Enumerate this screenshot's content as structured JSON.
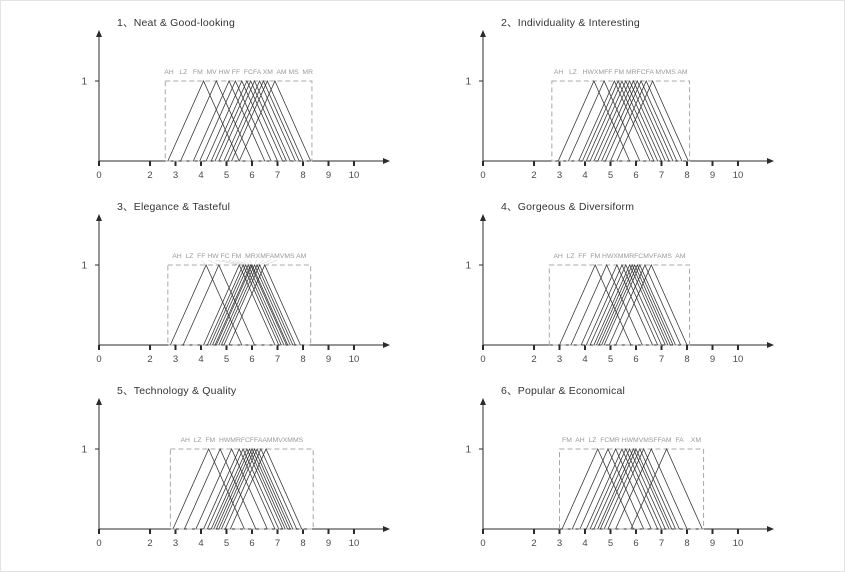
{
  "figure": {
    "name": "fuzzy membership function evaluation charts"
  },
  "colors": {
    "line": "#3a3a3a",
    "box": "#a8a8a8",
    "label": "#9a9a9a",
    "axis": "#2b2b2b",
    "tick_text": "#4a4a4a",
    "leader": "#cccccc"
  },
  "x_axis": {
    "ticks": [
      {
        "v": 0,
        "label": "0"
      },
      {
        "v": 2,
        "label": "2"
      },
      {
        "v": 3,
        "label": "3"
      },
      {
        "v": 4,
        "label": "4"
      },
      {
        "v": 5,
        "label": "5"
      },
      {
        "v": 6,
        "label": "6"
      },
      {
        "v": 7,
        "label": "7"
      },
      {
        "v": 8,
        "label": "8"
      },
      {
        "v": 9,
        "label": "9"
      },
      {
        "v": 10,
        "label": "10"
      }
    ],
    "xlim": [
      0,
      11
    ]
  },
  "chart_data": [
    {
      "type": "line",
      "title": "1、Neat & Good-looking",
      "y_max_label": "1",
      "labels_row": "AH   LZ   FM  MV HW FF  FCFA XM  AM MS  MR",
      "dashed_box": {
        "x1": 2.6,
        "x2": 8.35
      },
      "leader_lines": false,
      "triangles": [
        [
          2.7,
          4.1,
          5.5
        ],
        [
          3.2,
          4.6,
          6.0
        ],
        [
          3.7,
          5.1,
          6.5
        ],
        [
          3.95,
          5.35,
          6.75
        ],
        [
          4.2,
          5.6,
          7.0
        ],
        [
          4.4,
          5.8,
          7.2
        ],
        [
          4.55,
          5.95,
          7.35
        ],
        [
          4.7,
          6.1,
          7.5
        ],
        [
          4.9,
          6.3,
          7.7
        ],
        [
          5.05,
          6.45,
          7.85
        ],
        [
          5.2,
          6.6,
          8.0
        ],
        [
          5.5,
          6.9,
          8.3
        ]
      ]
    },
    {
      "type": "line",
      "title": "2、Individuality & Interesting",
      "y_max_label": "1",
      "labels_row": "AH   LZ   HWXMFF FM MRFCFA MVMS AM",
      "dashed_box": {
        "x1": 2.7,
        "x2": 8.1
      },
      "leader_lines": false,
      "triangles": [
        [
          2.95,
          4.35,
          5.75
        ],
        [
          3.35,
          4.75,
          6.15
        ],
        [
          3.75,
          5.15,
          6.55
        ],
        [
          3.9,
          5.3,
          6.7
        ],
        [
          4.05,
          5.45,
          6.85
        ],
        [
          4.2,
          5.6,
          7.0
        ],
        [
          4.35,
          5.75,
          7.15
        ],
        [
          4.5,
          5.9,
          7.3
        ],
        [
          4.65,
          6.05,
          7.45
        ],
        [
          4.8,
          6.2,
          7.6
        ],
        [
          5.0,
          6.4,
          7.8
        ],
        [
          5.25,
          6.65,
          8.05
        ]
      ]
    },
    {
      "type": "line",
      "title": "3、Elegance & Tasteful",
      "y_max_label": "1",
      "labels_row": "AH  LZ  FF HW FC FM  MRXMFAMVMS AM",
      "dashed_box": {
        "x1": 2.7,
        "x2": 8.3
      },
      "leader_lines": true,
      "triangles": [
        [
          2.8,
          4.2,
          5.6
        ],
        [
          3.3,
          4.7,
          6.1
        ],
        [
          4.1,
          5.5,
          6.9
        ],
        [
          4.25,
          5.65,
          7.05
        ],
        [
          4.35,
          5.75,
          7.15
        ],
        [
          4.45,
          5.85,
          7.25
        ],
        [
          4.55,
          5.95,
          7.35
        ],
        [
          4.6,
          6.0,
          7.4
        ],
        [
          4.7,
          6.1,
          7.5
        ],
        [
          4.8,
          6.2,
          7.6
        ],
        [
          4.9,
          6.3,
          7.7
        ],
        [
          5.1,
          6.5,
          7.9
        ]
      ]
    },
    {
      "type": "line",
      "title": "4、Gorgeous & Diversiform",
      "y_max_label": "1",
      "labels_row": "AH  LZ  FF  FM HWXMMRFCMVFAMS  AM",
      "dashed_box": {
        "x1": 2.6,
        "x2": 8.1
      },
      "leader_lines": false,
      "triangles": [
        [
          3.0,
          4.4,
          5.8
        ],
        [
          3.45,
          4.85,
          6.25
        ],
        [
          3.85,
          5.25,
          6.65
        ],
        [
          4.05,
          5.45,
          6.85
        ],
        [
          4.2,
          5.6,
          7.0
        ],
        [
          4.35,
          5.75,
          7.15
        ],
        [
          4.45,
          5.85,
          7.25
        ],
        [
          4.55,
          5.95,
          7.35
        ],
        [
          4.65,
          6.05,
          7.45
        ],
        [
          4.75,
          6.15,
          7.55
        ],
        [
          4.95,
          6.35,
          7.75
        ],
        [
          5.2,
          6.6,
          8.0
        ]
      ]
    },
    {
      "type": "line",
      "title": "5、Technology & Quality",
      "y_max_label": "1",
      "labels_row": "AH  LZ  FM  HWMRFCFFAAMMVXMMS",
      "dashed_box": {
        "x1": 2.8,
        "x2": 8.4
      },
      "leader_lines": false,
      "triangles": [
        [
          2.9,
          4.3,
          5.7
        ],
        [
          3.35,
          4.75,
          6.15
        ],
        [
          3.8,
          5.2,
          6.6
        ],
        [
          4.1,
          5.5,
          6.9
        ],
        [
          4.25,
          5.65,
          7.05
        ],
        [
          4.4,
          5.8,
          7.2
        ],
        [
          4.5,
          5.9,
          7.3
        ],
        [
          4.6,
          6.0,
          7.4
        ],
        [
          4.7,
          6.1,
          7.5
        ],
        [
          4.8,
          6.2,
          7.6
        ],
        [
          4.95,
          6.35,
          7.75
        ],
        [
          5.15,
          6.55,
          7.95
        ]
      ]
    },
    {
      "type": "line",
      "title": "6、Popular & Economical",
      "y_max_label": "1",
      "labels_row": "FM  AH  LZ  FCMR HWMVMSFFAM  FA    XM",
      "dashed_box": {
        "x1": 3.0,
        "x2": 8.65
      },
      "leader_lines": false,
      "triangles": [
        [
          3.1,
          4.5,
          5.9
        ],
        [
          3.5,
          4.9,
          6.3
        ],
        [
          3.8,
          5.2,
          6.6
        ],
        [
          4.05,
          5.45,
          6.85
        ],
        [
          4.2,
          5.6,
          7.0
        ],
        [
          4.35,
          5.75,
          7.15
        ],
        [
          4.5,
          5.9,
          7.3
        ],
        [
          4.6,
          6.0,
          7.4
        ],
        [
          4.75,
          6.15,
          7.55
        ],
        [
          4.9,
          6.3,
          7.7
        ],
        [
          5.2,
          6.6,
          8.0
        ],
        [
          5.8,
          7.2,
          8.6
        ]
      ]
    }
  ]
}
